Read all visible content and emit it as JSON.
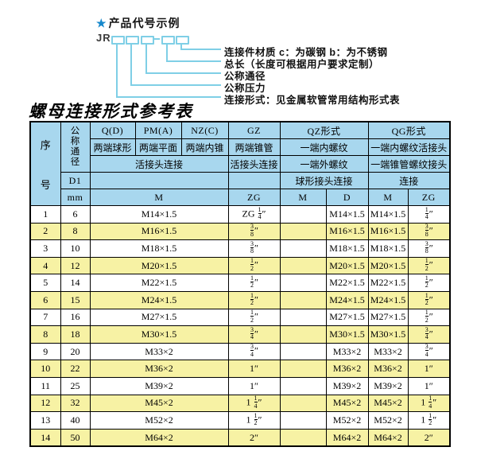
{
  "diagram": {
    "star": "★",
    "title": "产品代号示例",
    "code_prefix": "JR",
    "labels": [
      "连接件材质  c：为碳钢  b：为不锈钢",
      "总长（长度可根据用户要求定制）",
      "公称通径",
      "公称压力",
      "连接形式：见金属软管常用结构形式表"
    ]
  },
  "table": {
    "title": "螺母连接形式参考表",
    "header": {
      "seq": "序号",
      "dn": "公称通径",
      "d1": "D1",
      "mm": "mm",
      "q": "Q(D)",
      "q_sub": "两端球形",
      "pm": "PM(A)",
      "pm_sub": "两端平面",
      "nz": "NZ(C)",
      "nz_sub": "两端内锥",
      "gz": "GZ",
      "gz_sub": "两端锥管",
      "union_span": "活接头连接",
      "gz_union": "活接头连接",
      "qz": "QZ形式",
      "qz_sub1": "一端内螺纹",
      "qz_sub2": "一端外螺纹",
      "qz_sub3": "球形接头连接",
      "qg": "QG形式",
      "qg_sub1": "一端内螺纹活接头",
      "qg_sub2": "一端锥管螺纹接头",
      "qg_sub3": "连接",
      "m": "M",
      "zg": "ZG",
      "qz_m": "M",
      "qz_d": "D",
      "qg_m": "M",
      "qg_zg": "ZG"
    },
    "row_keys": [
      "seq",
      "dn_mm",
      "m",
      "zg",
      "qz_m",
      "qz_d",
      "qg_m",
      "qg_zg"
    ],
    "rows": [
      [
        "1",
        "6",
        "M14×1.5",
        "ZG 1/4″",
        "",
        "M14×1.5",
        "M14×1.5",
        "1/4″"
      ],
      [
        "2",
        "8",
        "M16×1.5",
        "3/8″",
        "",
        "M16×1.5",
        "M16×1.5",
        "3/8″"
      ],
      [
        "3",
        "10",
        "M18×1.5",
        "3/8″",
        "",
        "M18×1.5",
        "M18×1.5",
        "3/8″"
      ],
      [
        "4",
        "12",
        "M20×1.5",
        "1/2″",
        "",
        "M20×1.5",
        "M20×1.5",
        "1/2″"
      ],
      [
        "5",
        "14",
        "M22×1.5",
        "1/2″",
        "",
        "M22×1.5",
        "M22×1.5",
        "1/2″"
      ],
      [
        "6",
        "15",
        "M24×1.5",
        "1/2″",
        "",
        "M24×1.5",
        "M24×1.5",
        "1/2″"
      ],
      [
        "7",
        "16",
        "M27×1.5",
        "1/2″",
        "",
        "M27×1.5",
        "M27×1.5",
        "1/2″"
      ],
      [
        "8",
        "18",
        "M30×1.5",
        "3/4″",
        "",
        "M30×1.5",
        "M30×1.5",
        "3/4″"
      ],
      [
        "9",
        "20",
        "M33×2",
        "3/4″",
        "",
        "M33×2",
        "M33×2",
        "3/4″"
      ],
      [
        "10",
        "22",
        "M36×2",
        "1″",
        "",
        "M36×2",
        "M36×2",
        "1″"
      ],
      [
        "11",
        "25",
        "M39×2",
        "1″",
        "",
        "M39×2",
        "M39×2",
        "1″"
      ],
      [
        "12",
        "32",
        "M45×2",
        "1 1/4″",
        "",
        "M45×2",
        "M45×2",
        "1 1/4″"
      ],
      [
        "13",
        "40",
        "M52×2",
        "1 1/2″",
        "",
        "M52×2",
        "M52×2",
        "1 1/2″"
      ],
      [
        "14",
        "50",
        "M64×2",
        "2″",
        "",
        "M64×2",
        "M64×2",
        "2″"
      ]
    ],
    "colors": {
      "header_bg": "#a8d7ee",
      "row_alt_bg": "#f7f2a4",
      "row_bg": "#ffffff",
      "border": "#000000",
      "diagram_line": "#7fcfe6",
      "star_blue": "#1688cc",
      "text": "#000000"
    }
  }
}
